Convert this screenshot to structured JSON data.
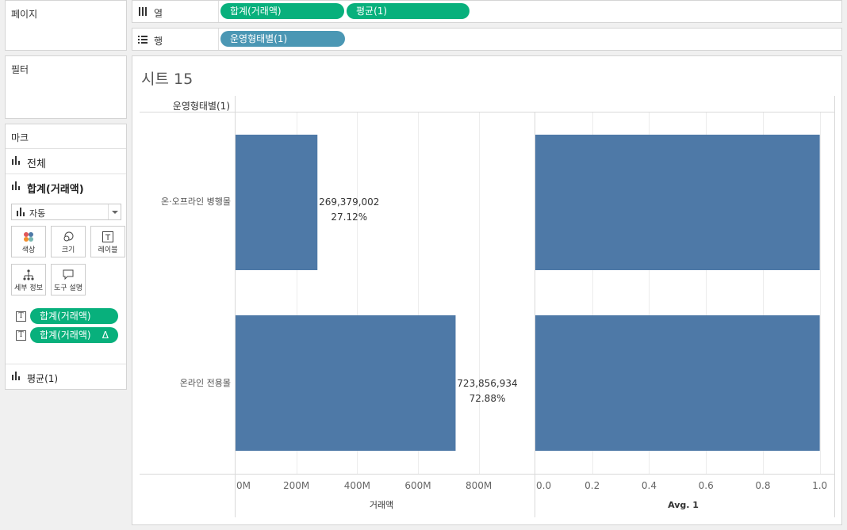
{
  "pages_card": {
    "title": "페이지"
  },
  "filters_card": {
    "title": "필터"
  },
  "columns_shelf": {
    "label": "열",
    "pills": [
      "합계(거래액)",
      "평균(1)"
    ]
  },
  "rows_shelf": {
    "label": "행",
    "pills": [
      "운영형태별(1)"
    ]
  },
  "marks_card": {
    "title": "마크",
    "all_label": "전체",
    "sum_label": "합계(거래액)",
    "avg_label": "평균(1)",
    "mark_type": "자동",
    "buttons": [
      "색상",
      "크기",
      "레이블",
      "세부 정보",
      "도구 설명"
    ],
    "text_pills": [
      "합계(거래액)",
      "합계(거래액)"
    ],
    "delta_symbol": "Δ"
  },
  "sheet": {
    "title": "시트 15",
    "row_header": "운영형태별(1)"
  },
  "colors": {
    "green_pill": "#08b07c",
    "blue_pill": "#4b97b4",
    "bar": "#4e79a7"
  },
  "chart_data": [
    {
      "type": "bar",
      "orientation": "horizontal",
      "categories": [
        "온·오프라인 병행몰",
        "온라인 전용몰"
      ],
      "values": [
        269379002,
        723856934
      ],
      "labels": [
        [
          "269,379,002",
          "27.12%"
        ],
        [
          "723,856,934",
          "72.88%"
        ]
      ],
      "xlabel": "거래액",
      "xlim": [
        0,
        960000000
      ],
      "xticks": [
        "0M",
        "200M",
        "400M",
        "600M",
        "800M"
      ],
      "tick_values": [
        0,
        200000000,
        400000000,
        600000000,
        800000000
      ],
      "grid": true
    },
    {
      "type": "bar",
      "orientation": "horizontal",
      "categories": [
        "온·오프라인 병행몰",
        "온라인 전용몰"
      ],
      "values": [
        1,
        1
      ],
      "xlabel": "Avg. 1",
      "xlim": [
        0,
        1.04
      ],
      "xticks": [
        "0.0",
        "0.2",
        "0.4",
        "0.6",
        "0.8",
        "1.0"
      ],
      "tick_values": [
        0,
        0.2,
        0.4,
        0.6,
        0.8,
        1.0
      ],
      "grid": true
    }
  ]
}
